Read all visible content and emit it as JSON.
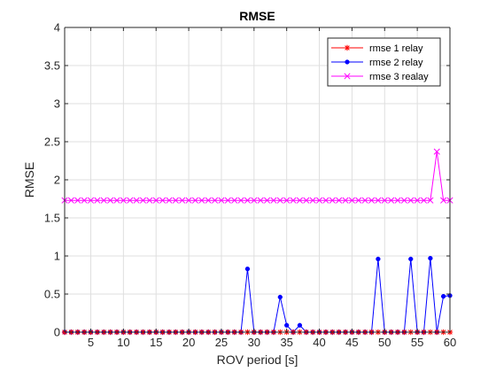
{
  "chart_data": {
    "type": "line",
    "title": "RMSE",
    "xlabel": "ROV period [s]",
    "ylabel": "RMSE",
    "xlim": [
      1,
      60
    ],
    "ylim": [
      0,
      4
    ],
    "xticks": [
      5,
      10,
      15,
      20,
      25,
      30,
      35,
      40,
      45,
      50,
      55,
      60
    ],
    "yticks": [
      0,
      0.5,
      1,
      1.5,
      2,
      2.5,
      3,
      3.5,
      4
    ],
    "grid": true,
    "legend_position": "top-right",
    "x": [
      1,
      2,
      3,
      4,
      5,
      6,
      7,
      8,
      9,
      10,
      11,
      12,
      13,
      14,
      15,
      16,
      17,
      18,
      19,
      20,
      21,
      22,
      23,
      24,
      25,
      26,
      27,
      28,
      29,
      30,
      31,
      32,
      33,
      34,
      35,
      36,
      37,
      38,
      39,
      40,
      41,
      42,
      43,
      44,
      45,
      46,
      47,
      48,
      49,
      50,
      51,
      52,
      53,
      54,
      55,
      56,
      57,
      58,
      59,
      60
    ],
    "series": [
      {
        "name": "rmse 1 relay",
        "color": "#ff0000",
        "marker": "asterisk",
        "values": [
          0,
          0,
          0,
          0,
          0,
          0,
          0,
          0,
          0,
          0,
          0,
          0,
          0,
          0,
          0,
          0,
          0,
          0,
          0,
          0,
          0,
          0,
          0,
          0,
          0,
          0,
          0,
          0,
          0,
          0,
          0,
          0,
          0,
          0,
          0,
          0,
          0,
          0,
          0,
          0,
          0,
          0,
          0,
          0,
          0,
          0,
          0,
          0,
          0,
          0,
          0,
          0,
          0,
          0,
          0,
          0,
          0,
          0,
          0,
          0
        ]
      },
      {
        "name": "rmse 2 relay",
        "color": "#0000ff",
        "marker": "dot",
        "values": [
          0,
          0,
          0,
          0,
          0,
          0,
          0,
          0,
          0,
          0,
          0,
          0,
          0,
          0,
          0,
          0,
          0,
          0,
          0,
          0,
          0,
          0,
          0,
          0,
          0,
          0,
          0,
          0,
          0.83,
          0,
          0,
          0,
          0,
          0.46,
          0.09,
          0,
          0.09,
          0,
          0,
          0,
          0,
          0,
          0,
          0,
          0,
          0,
          0,
          0,
          0.96,
          0,
          0,
          0,
          0,
          0.96,
          0,
          0,
          0.97,
          0,
          0.47,
          0.48
        ]
      },
      {
        "name": "rmse 3 realay",
        "color": "#ff00ff",
        "marker": "x",
        "values": [
          1.73,
          1.73,
          1.73,
          1.73,
          1.73,
          1.73,
          1.73,
          1.73,
          1.73,
          1.73,
          1.73,
          1.73,
          1.73,
          1.73,
          1.73,
          1.73,
          1.73,
          1.73,
          1.73,
          1.73,
          1.73,
          1.73,
          1.73,
          1.73,
          1.73,
          1.73,
          1.73,
          1.73,
          1.73,
          1.73,
          1.73,
          1.73,
          1.73,
          1.73,
          1.73,
          1.73,
          1.73,
          1.73,
          1.73,
          1.73,
          1.73,
          1.73,
          1.73,
          1.73,
          1.73,
          1.73,
          1.73,
          1.73,
          1.73,
          1.73,
          1.73,
          1.73,
          1.73,
          1.73,
          1.73,
          1.73,
          1.73,
          2.37,
          1.73,
          1.73
        ]
      }
    ]
  }
}
